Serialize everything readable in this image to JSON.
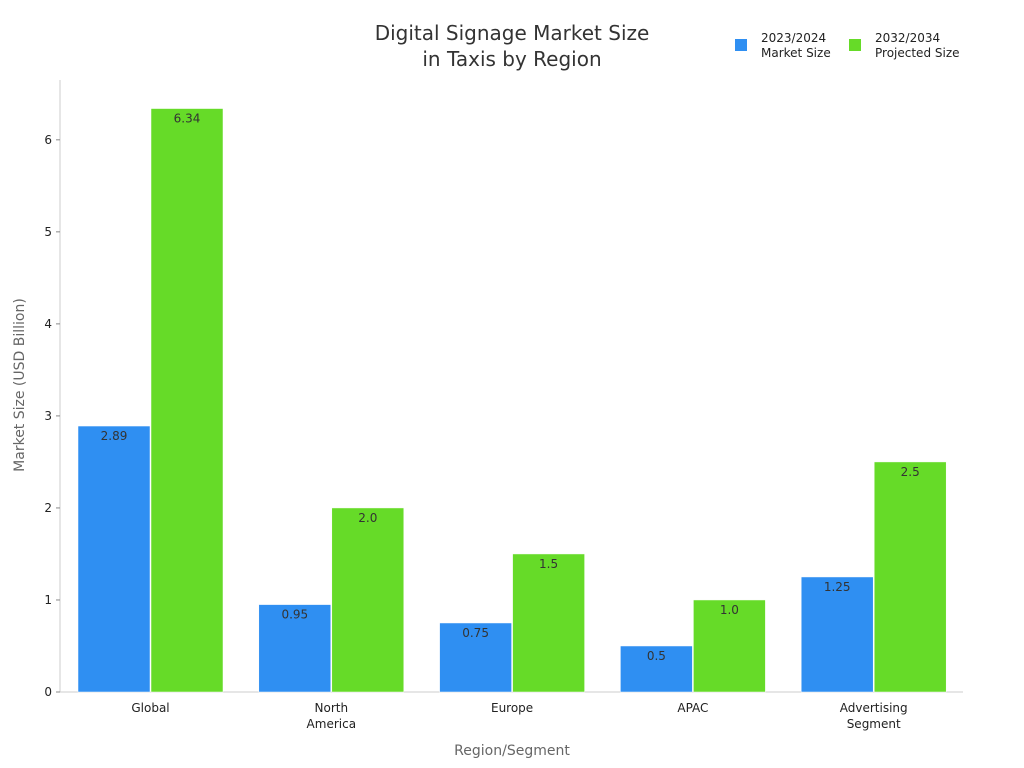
{
  "chart_data": {
    "type": "bar",
    "title": [
      "Digital Signage Market Size",
      "in Taxis by Region"
    ],
    "xlabel": "Region/Segment",
    "ylabel": "Market Size (USD Billion)",
    "ylim": [
      0,
      6.65
    ],
    "yticks": [
      0,
      1,
      2,
      3,
      4,
      5,
      6
    ],
    "categories": [
      [
        "Global"
      ],
      [
        "North",
        "America"
      ],
      [
        "Europe"
      ],
      [
        "APAC"
      ],
      [
        "Advertising",
        "Segment"
      ]
    ],
    "series": [
      {
        "name": [
          "2023/2024",
          "Market Size"
        ],
        "color": "#2f8ff2",
        "values": [
          2.89,
          0.95,
          0.75,
          0.5,
          1.25
        ],
        "labels": [
          "2.89",
          "0.95",
          "0.75",
          "0.5",
          "1.25"
        ]
      },
      {
        "name": [
          "2032/2034",
          "Projected Size"
        ],
        "color": "#66db28",
        "values": [
          6.34,
          2.0,
          1.5,
          1.0,
          2.5
        ],
        "labels": [
          "6.34",
          "2.0",
          "1.5",
          "1.0",
          "2.5"
        ]
      }
    ],
    "legend_position": "top-right",
    "grid": false
  }
}
